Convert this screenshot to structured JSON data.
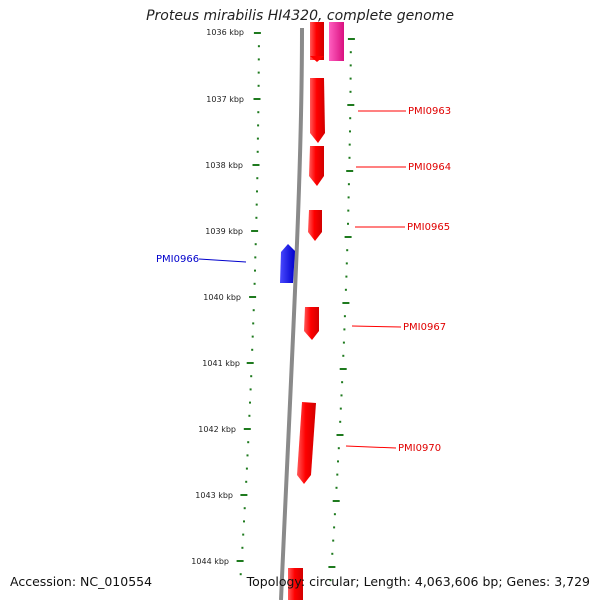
{
  "title": "Proteus mirabilis HI4320, complete genome",
  "footer": {
    "accession": "Accession: NC_010554",
    "topology": "Topology: circular; Length: 4,063,606 bp; Genes: 3,729"
  },
  "colors": {
    "forward_gene": "#ff0000",
    "reverse_gene": "#0000ff",
    "pink_feature": "#e8149a",
    "ruler_ticks": "#1e7a1e",
    "backbone": "#8a8a8a"
  },
  "ruler": {
    "unit": "kbp",
    "labels": [
      "1036 kbp",
      "1037 kbp",
      "1038 kbp",
      "1039 kbp",
      "1040 kbp",
      "1041 kbp",
      "1042 kbp",
      "1043 kbp",
      "1044 kbp"
    ]
  },
  "genes": [
    {
      "name": "PMI0963",
      "strand": "+"
    },
    {
      "name": "PMI0964",
      "strand": "+"
    },
    {
      "name": "PMI0965",
      "strand": "+"
    },
    {
      "name": "PMI0966",
      "strand": "-"
    },
    {
      "name": "PMI0967",
      "strand": "+"
    },
    {
      "name": "PMI0970",
      "strand": "+"
    }
  ]
}
